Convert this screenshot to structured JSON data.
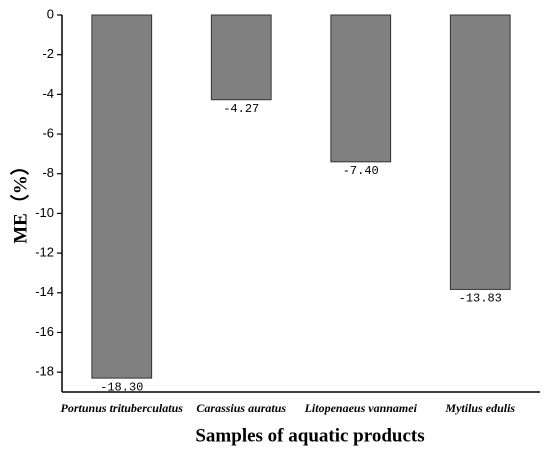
{
  "chart_data": {
    "type": "bar",
    "x_label": "Samples of aquatic products",
    "y_label": "ME（%）",
    "categories": [
      "Portunus trituberculatus",
      "Carassius auratus",
      "Litopenaeus vannamei",
      "Mytilus edulis"
    ],
    "values": [
      -18.3,
      -4.27,
      -7.4,
      -13.83
    ],
    "value_labels": [
      "-18.30",
      "-4.27",
      "-7.40",
      "-13.83"
    ],
    "color": "#808080",
    "ylim": [
      -19,
      0
    ],
    "yticks": [
      0,
      -2,
      -4,
      -6,
      -8,
      -10,
      -12,
      -14,
      -16,
      -18
    ]
  }
}
